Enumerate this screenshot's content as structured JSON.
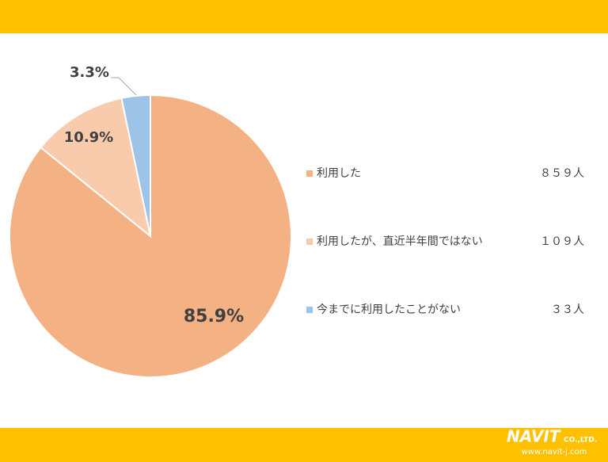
{
  "chart_data": {
    "type": "pie",
    "categories": [
      "利用した",
      "利用したが、直近半年間ではない",
      "今までに利用したことがない"
    ],
    "values": [
      85.9,
      10.9,
      3.3
    ],
    "value_labels": [
      "85.9%",
      "10.9%",
      "3.3%"
    ],
    "colors": [
      "#f4b183",
      "#f8cbad",
      "#9dc3e6"
    ],
    "legend_counts": [
      "８５９人",
      "１０９人",
      "３３人"
    ]
  },
  "footer": {
    "logo": "NAVIT",
    "company_suffix": "CO.,LTD.",
    "url": "www.navit-j.com"
  }
}
